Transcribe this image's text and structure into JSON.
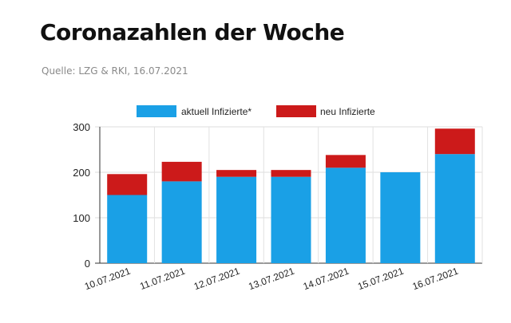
{
  "header": {
    "title": "Coronazahlen der Woche",
    "source": "Quelle: LZG & RKI, 16.07.2021"
  },
  "chart_data": {
    "type": "bar",
    "stacked": true,
    "categories": [
      "10.07.2021",
      "11.07.2021",
      "12.07.2021",
      "13.07.2021",
      "14.07.2021",
      "15.07.2021",
      "16.07.2021"
    ],
    "series": [
      {
        "name": "aktuell Infizierte*",
        "color": "#1aa0e6",
        "values": [
          150,
          180,
          190,
          190,
          210,
          200,
          240
        ]
      },
      {
        "name": "neu Infizierte",
        "color": "#cc1a1a",
        "values": [
          46,
          43,
          15,
          15,
          28,
          0,
          56
        ]
      }
    ],
    "ylim": [
      0,
      300
    ],
    "yticks": [
      "0",
      "100",
      "200",
      "300"
    ],
    "grid": true,
    "legend_position": "top-center"
  }
}
